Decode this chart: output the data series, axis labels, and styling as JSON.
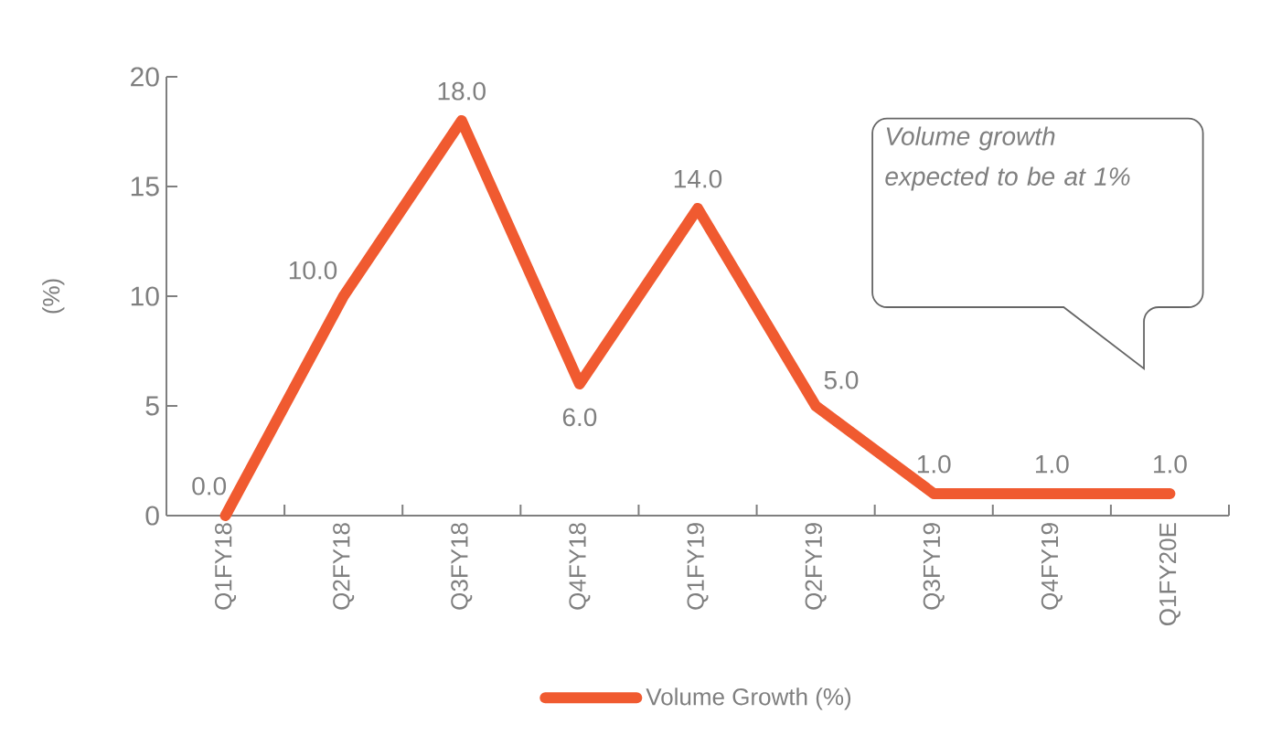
{
  "chart_data": {
    "type": "line",
    "categories": [
      "Q1FY18",
      "Q2FY18",
      "Q3FY18",
      "Q4FY18",
      "Q1FY19",
      "Q2FY19",
      "Q3FY19",
      "Q4FY19",
      "Q1FY20E"
    ],
    "series": [
      {
        "name": "Volume Growth (%)",
        "color": "#f05a30",
        "values": [
          0.0,
          10.0,
          18.0,
          6.0,
          14.0,
          5.0,
          1.0,
          1.0,
          1.0
        ],
        "value_labels": [
          "0.0",
          "10.0",
          "18.0",
          "6.0",
          "14.0",
          "5.0",
          "1.0",
          "1.0",
          "1.0"
        ]
      }
    ],
    "ylabel": "(%)",
    "ylim": [
      0,
      20
    ],
    "yticks": [
      0,
      5,
      10,
      15,
      20
    ],
    "legend": "bottom",
    "grid": false,
    "marker": "none",
    "line_style": "solid",
    "annotations": [
      "Volume growth expected to be at 1%"
    ]
  }
}
